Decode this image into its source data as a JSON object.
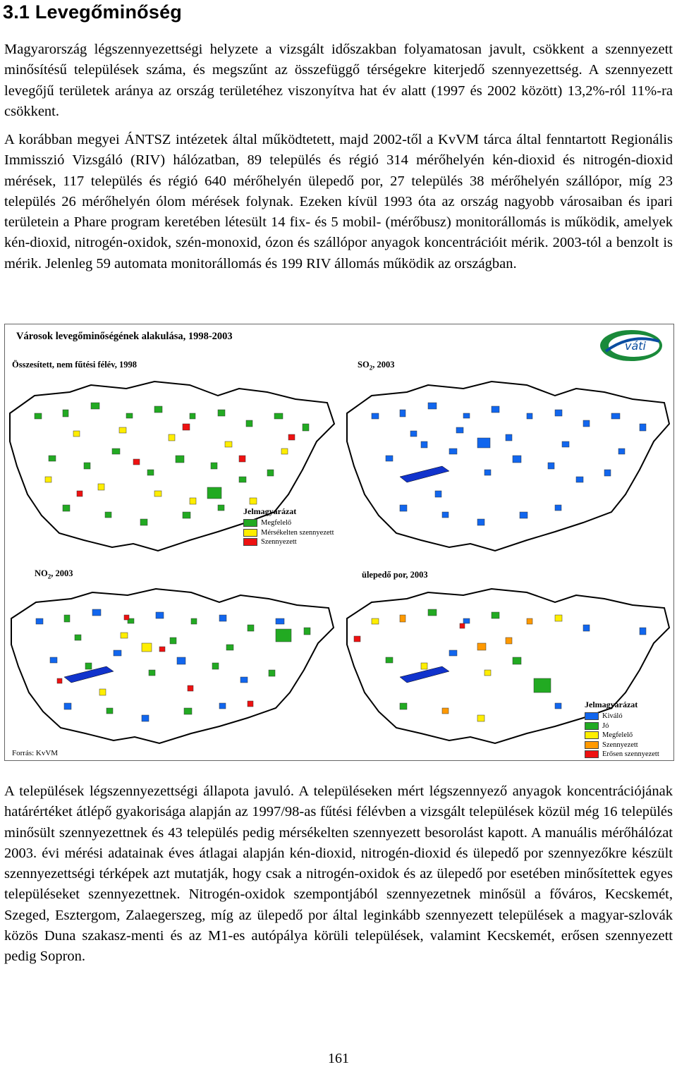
{
  "heading": "3.1  Levegőminőség",
  "paragraphs": [
    "Magyarország légszennyezettségi helyzete a vizsgált időszakban folyamatosan javult, csökkent a szennyezett minősítésű települések száma, és megszűnt az összefüggő térségekre kiterjedő szennyezettség. A szennyezett levegőjű területek aránya az ország területéhez viszonyítva hat év alatt (1997 és 2002 között) 13,2%-ról 11%-ra csökkent.",
    "A korábban megyei ÁNTSZ intézetek által működtetett, majd 2002-től a KvVM tárca által fenntartott Regionális Immisszió Vizsgáló (RIV) hálózatban, 89 település és régió 314 mérőhelyén kén-dioxid és nitrogén-dioxid mérések, 117 település és régió 640 mérőhelyén ülepedő por, 27 település 38 mérőhelyén szállópor, míg 23 település 26 mérőhelyén ólom mérések folynak. Ezeken kívül 1993 óta az ország nagyobb városaiban és ipari területein a Phare program keretében létesült 14 fix- és 5 mobil- (mérőbusz) monitorállomás is működik, amelyek kén-dioxid, nitrogén-oxidok, szén-monoxid, ózon és szállópor anyagok koncentrációit mérik. 2003-tól a benzolt is mérik. Jelenleg 59 automata monitorállomás és 199 RIV állomás működik az országban.",
    "A települések légszennyezettségi állapota javuló. A településeken mért légszennyező anyagok koncentrációjának határértéket átlépő gyakorisága alapján az 1997/98-as fűtési félévben a vizsgált települések közül még 16 település minősült szennyezettnek és 43 település pedig mérsékelten szennyezett besorolást kapott. A manuális mérőhálózat 2003. évi mérési adatainak éves átlagai alapján kén-dioxid, nitrogén-dioxid és ülepedő por szennyezőkre készült szennyezettségi térképek azt mutatják, hogy csak a nitrogén-oxidok és az ülepedő por esetében minősítettek egyes településeket szennyezettnek. Nitrogén-oxidok szempontjából szennyezetnek minősül a főváros, Kecskemét, Szeged, Esztergom, Zalaegerszeg, míg az ülepedő por által leginkább szennyezett települések a magyar-szlovák közös Duna szakasz-menti és az M1-es autópálya körüli települések, valamint Kecskemét, erősen szennyezett pedig Sopron."
  ],
  "figure": {
    "title": "Városok levegőminőségének alakulása, 1998-2003",
    "logo_text": "váti",
    "maps": [
      {
        "label": "Összesített, nem fűtési félév, 1998"
      },
      {
        "label_main": "SO",
        "label_sub": "2",
        "label_rest": ", 2003"
      },
      {
        "label_main": "NO",
        "label_sub": "2",
        "label_rest": ", 2003"
      },
      {
        "label": "ülepedő por, 2003"
      }
    ],
    "legend1": {
      "title": "Jelmagyarázat",
      "items": [
        {
          "label": "Megfelelő",
          "color": "#22aa22"
        },
        {
          "label": "Mérsékelten szennyezett",
          "color": "#ffee00"
        },
        {
          "label": "Szennyezett",
          "color": "#ee1111"
        }
      ]
    },
    "legend2": {
      "title": "Jelmagyarázat",
      "items": [
        {
          "label": "Kiváló",
          "color": "#1166ee"
        },
        {
          "label": "Jó",
          "color": "#22aa22"
        },
        {
          "label": "Megfelelő",
          "color": "#ffee00"
        },
        {
          "label": "Szennyezett",
          "color": "#ff9900"
        },
        {
          "label": "Erősen szennyezett",
          "color": "#ee1111"
        }
      ]
    },
    "source": "Forrás: KvVM"
  },
  "page_number": "161"
}
